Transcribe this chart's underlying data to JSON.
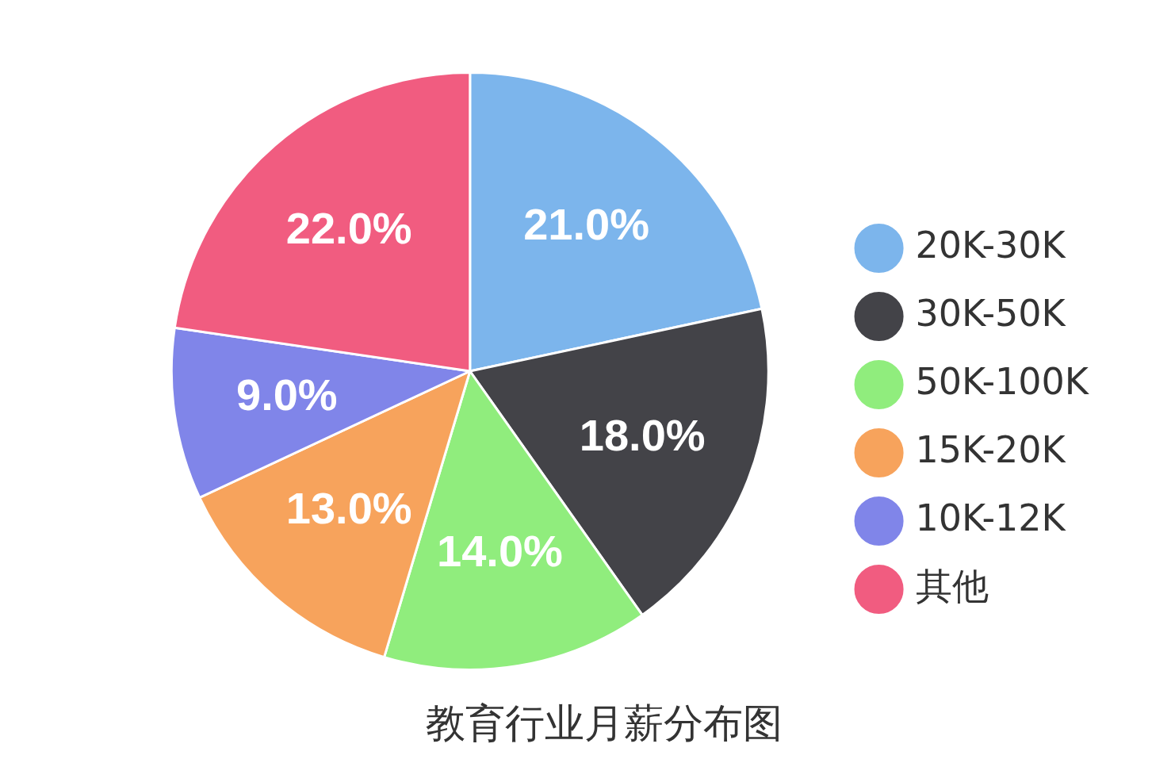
{
  "chart_data": {
    "type": "pie",
    "title": "教育行业月薪分布图",
    "categories": [
      "20K-30K",
      "30K-50K",
      "50K-100K",
      "15K-20K",
      "10K-12K",
      "其他"
    ],
    "values": [
      21,
      18,
      14,
      13,
      9,
      22
    ],
    "value_labels": [
      "21.0%",
      "18.0%",
      "14.0%",
      "13.0%",
      "9.0%",
      "22.0%"
    ],
    "colors": [
      "#7cb5ec",
      "#434348",
      "#90ed7d",
      "#f7a35c",
      "#8085e9",
      "#f15c80"
    ],
    "legend": "right"
  }
}
